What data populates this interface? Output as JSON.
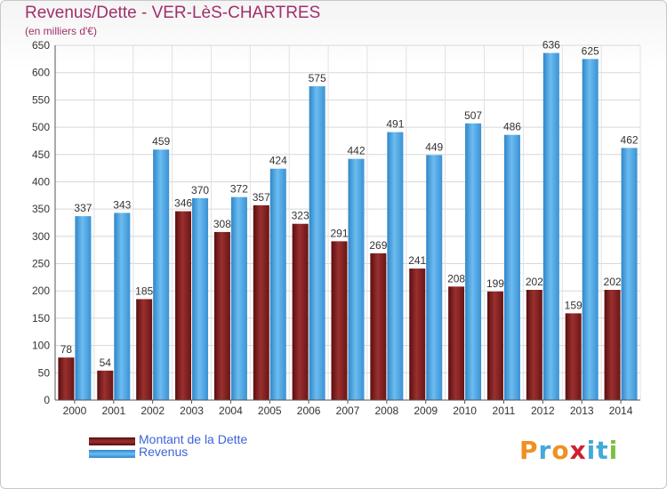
{
  "title": "Revenus/Dette - VER-LèS-CHARTRES",
  "subtitle": "(en milliers d'€)",
  "brand": {
    "text": "Proxiti",
    "letter_colors": [
      "#f09020",
      "#46a8d8",
      "#f09020",
      "#d02030",
      "#46a8d8",
      "#46a8d8",
      "#7cc040"
    ]
  },
  "chart_data": {
    "type": "bar",
    "title": "Revenus/Dette - VER-LèS-CHARTRES",
    "subtitle": "(en milliers d'€)",
    "xlabel": "",
    "ylabel": "",
    "ylim": [
      0,
      650
    ],
    "yticks": [
      0,
      50,
      100,
      150,
      200,
      250,
      300,
      350,
      400,
      450,
      500,
      550,
      600,
      650
    ],
    "grid": true,
    "legend_position": "bottom-left",
    "categories": [
      "2000",
      "2001",
      "2002",
      "2003",
      "2004",
      "2005",
      "2006",
      "2007",
      "2008",
      "2009",
      "2010",
      "2011",
      "2012",
      "2013",
      "2014"
    ],
    "series": [
      {
        "name": "Montant de la Dette",
        "color": "#7a1a1a",
        "values": [
          78,
          54,
          185,
          346,
          308,
          357,
          323,
          291,
          269,
          241,
          208,
          199,
          202,
          159,
          202
        ]
      },
      {
        "name": "Revenus",
        "color": "#4aa3e0",
        "values": [
          337,
          343,
          459,
          370,
          372,
          424,
          575,
          442,
          491,
          449,
          507,
          486,
          636,
          625,
          462
        ]
      }
    ]
  }
}
